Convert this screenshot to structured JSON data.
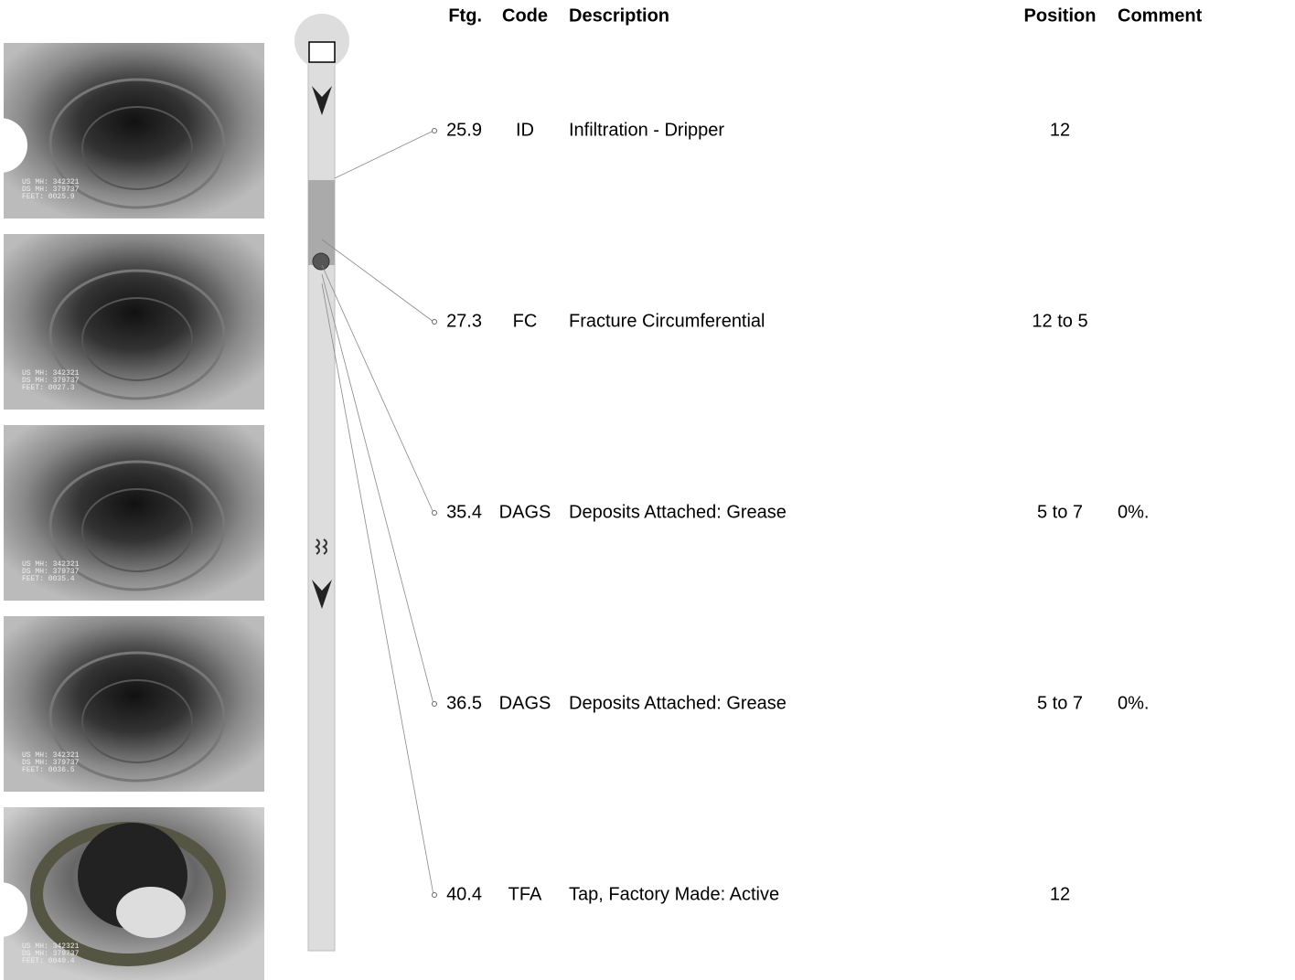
{
  "header": {
    "ftg": "Ftg.",
    "code": "Code",
    "description": "Description",
    "position": "Position",
    "comment": "Comment"
  },
  "rows": [
    {
      "ftg": "25.9",
      "code": "ID",
      "description": "Infiltration - Dripper",
      "position": "12"
    },
    {
      "ftg": "27.3",
      "code": "FC",
      "description": "Fracture Circumferential",
      "position": "12 to 5"
    },
    {
      "ftg": "35.4",
      "code": "DAGS",
      "description": "Deposits Attached: Grease",
      "position": "5 to 7",
      "comment": "0%."
    },
    {
      "ftg": "36.5",
      "code": "DAGS",
      "description": "Deposits Attached: Grease",
      "position": "5 to 7",
      "comment": "0%."
    },
    {
      "ftg": "40.4",
      "code": "TFA",
      "description": "Tap, Factory Made: Active",
      "position": "12"
    }
  ],
  "photos": [
    {
      "lines": [
        "US MH: 342321",
        "DS MH: 379737",
        "FEET: 0025.9"
      ]
    },
    {
      "lines": [
        "US MH: 342321",
        "DS MH: 379737",
        "FEET: 0027.3"
      ]
    },
    {
      "lines": [
        "US MH: 342321",
        "DS MH: 379737",
        "FEET: 0035.4"
      ]
    },
    {
      "lines": [
        "US MH: 342321",
        "DS MH: 379737",
        "FEET: 0036.5"
      ]
    },
    {
      "lines": [
        "US MH: 342321",
        "DS MH: 379737",
        "FEET: 0040.4"
      ]
    }
  ]
}
